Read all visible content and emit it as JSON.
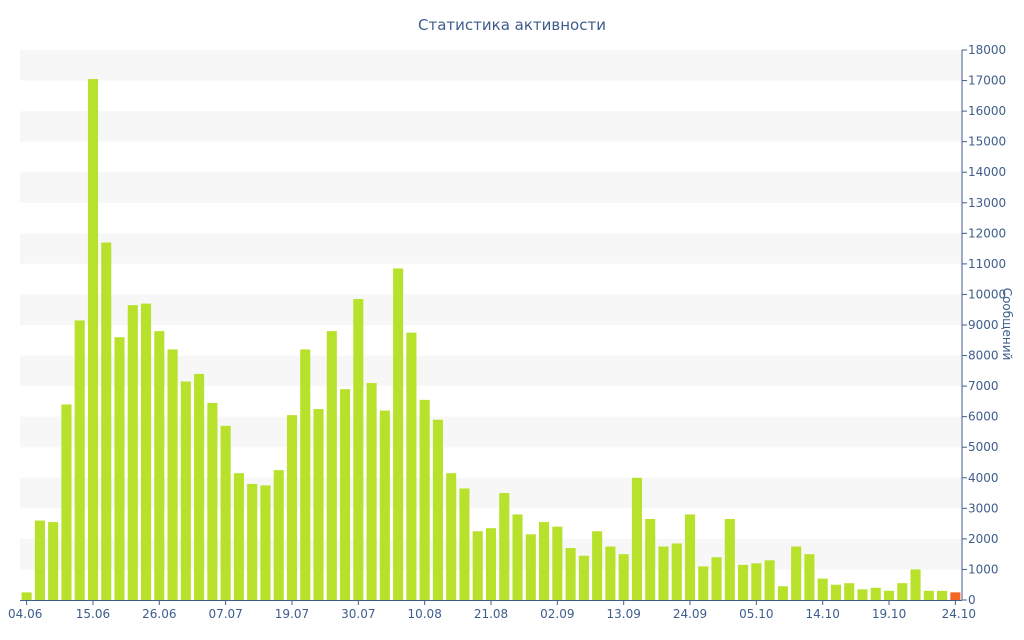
{
  "chart_data": {
    "type": "bar",
    "title": "Статистика активности",
    "xlabel": "",
    "ylabel": "Сообщений",
    "ylim": [
      0,
      18000
    ],
    "y_ticks": [
      0,
      1000,
      2000,
      3000,
      4000,
      5000,
      6000,
      7000,
      8000,
      9000,
      10000,
      11000,
      12000,
      13000,
      14000,
      15000,
      16000,
      17000,
      18000
    ],
    "y_axis_position": "right",
    "x_tick_labels": [
      "04.06",
      "15.06",
      "26.06",
      "07.07",
      "19.07",
      "30.07",
      "10.08",
      "21.08",
      "02.09",
      "13.09",
      "24.09",
      "05.10",
      "14.10",
      "19.10",
      "24.10"
    ],
    "x_tick_indices": [
      0,
      5,
      10,
      15,
      20,
      25,
      30,
      35,
      40,
      45,
      50,
      55,
      60,
      65,
      70
    ],
    "colors": {
      "bar": "#b7e12b",
      "last_bar": "#f26522",
      "band": "#f7f7f7",
      "axis_text": "#3f5d8c"
    },
    "values": [
      250,
      2600,
      2550,
      6400,
      9150,
      17050,
      11700,
      8600,
      9650,
      9700,
      8800,
      8200,
      7150,
      7400,
      6450,
      5700,
      4150,
      3800,
      3750,
      4250,
      6050,
      8200,
      6250,
      8800,
      6900,
      9850,
      7100,
      6200,
      10850,
      8750,
      6550,
      5900,
      4150,
      3650,
      2250,
      2350,
      3500,
      2800,
      2150,
      2550,
      2400,
      1700,
      1450,
      2250,
      1750,
      1500,
      4000,
      2650,
      1750,
      1850,
      2800,
      1100,
      1400,
      2650,
      1150,
      1200,
      1300,
      450,
      1750,
      1500,
      700,
      500,
      550,
      350,
      400,
      300,
      550,
      1000,
      300,
      300,
      250
    ]
  }
}
